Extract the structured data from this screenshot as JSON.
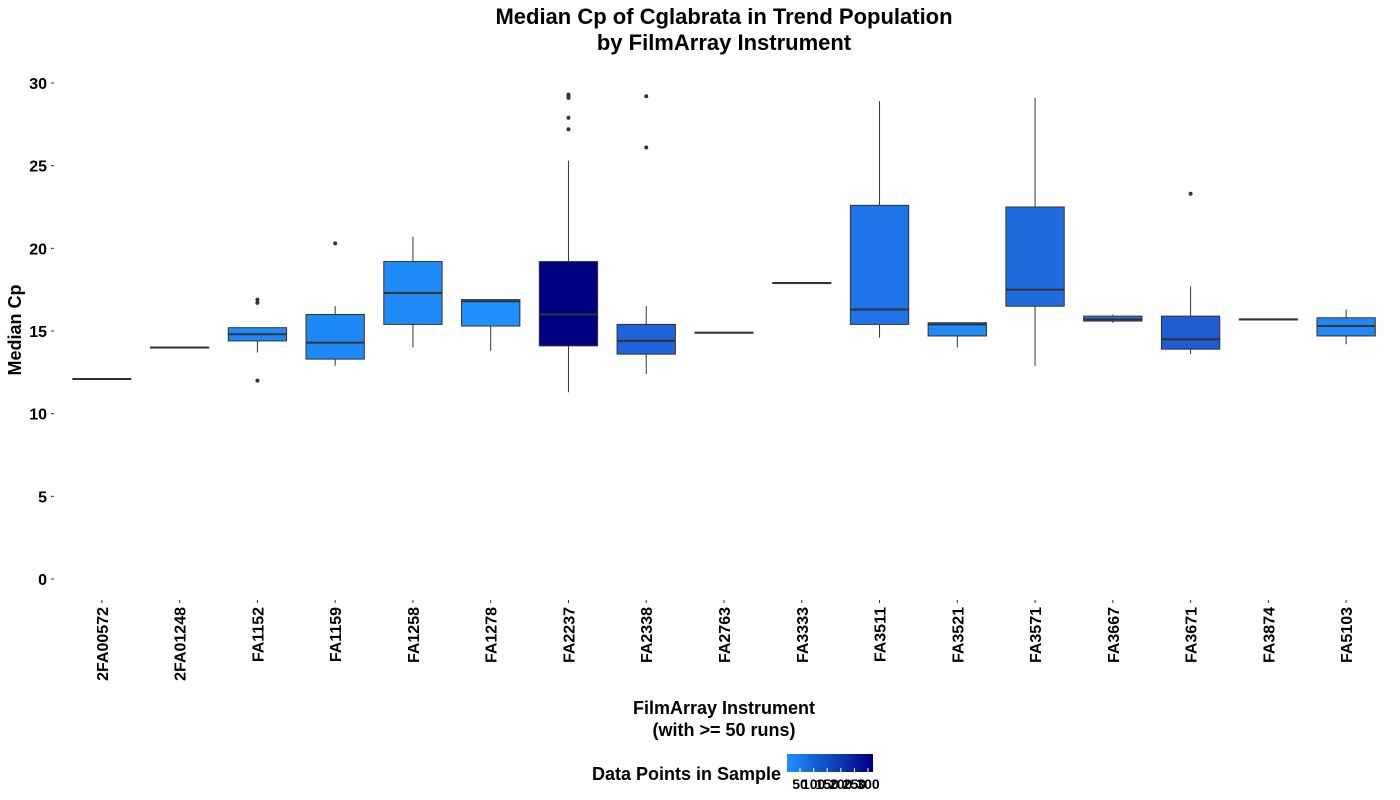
{
  "chart_data": {
    "type": "box",
    "title": [
      "Median Cp of Cglabrata in Trend Population",
      "by FilmArray Instrument"
    ],
    "xlabel": [
      "FilmArray Instrument",
      "(with >= 50 runs)"
    ],
    "ylabel": "Median Cp",
    "ylim": [
      -1,
      31
    ],
    "yticks": [
      0,
      5,
      10,
      15,
      20,
      25,
      30
    ],
    "grid": false,
    "legend": {
      "title": "Data Points in Sample",
      "position": "bottom",
      "labels": [
        "50",
        "100",
        "150",
        "200",
        "250",
        "300"
      ],
      "color_low": "#1E90FF",
      "color_high": "#000080"
    },
    "categories": [
      "2FA00572",
      "2FA01248",
      "FA1152",
      "FA1159",
      "FA1258",
      "FA1278",
      "FA2237",
      "FA2338",
      "FA2763",
      "FA3333",
      "FA3511",
      "FA3521",
      "FA3571",
      "FA3667",
      "FA3671",
      "FA3874",
      "FA5103"
    ],
    "boxes": [
      {
        "q1": 12.1,
        "median": 12.1,
        "q3": 12.1,
        "whisker_low": 12.1,
        "whisker_high": 12.1,
        "outliers": [],
        "fill": "#1E90FF"
      },
      {
        "q1": 14.0,
        "median": 14.0,
        "q3": 14.0,
        "whisker_low": 14.0,
        "whisker_high": 14.0,
        "outliers": [],
        "fill": "#1E90FF"
      },
      {
        "q1": 14.4,
        "median": 14.8,
        "q3": 15.2,
        "whisker_low": 13.7,
        "whisker_high": 15.2,
        "outliers": [
          12.0,
          16.7,
          16.9
        ],
        "fill": "#1E88F5"
      },
      {
        "q1": 13.3,
        "median": 14.3,
        "q3": 16.0,
        "whisker_low": 12.9,
        "whisker_high": 16.5,
        "outliers": [
          20.3
        ],
        "fill": "#1E88F5"
      },
      {
        "q1": 15.4,
        "median": 17.3,
        "q3": 19.2,
        "whisker_low": 14.0,
        "whisker_high": 20.7,
        "outliers": [],
        "fill": "#1E8BF8"
      },
      {
        "q1": 15.3,
        "median": 16.8,
        "q3": 16.9,
        "whisker_low": 13.8,
        "whisker_high": 16.9,
        "outliers": [],
        "fill": "#1E90FF"
      },
      {
        "q1": 14.1,
        "median": 16.0,
        "q3": 19.2,
        "whisker_low": 11.3,
        "whisker_high": 25.3,
        "outliers": [
          27.2,
          27.9,
          29.1,
          29.2,
          29.3
        ],
        "fill": "#000080"
      },
      {
        "q1": 13.6,
        "median": 14.4,
        "q3": 15.4,
        "whisker_low": 12.4,
        "whisker_high": 16.5,
        "outliers": [
          26.1,
          29.2
        ],
        "fill": "#1E64D8"
      },
      {
        "q1": 14.9,
        "median": 14.9,
        "q3": 14.9,
        "whisker_low": 14.9,
        "whisker_high": 14.9,
        "outliers": [],
        "fill": "#1E90FF"
      },
      {
        "q1": 17.9,
        "median": 17.9,
        "q3": 17.9,
        "whisker_low": 17.9,
        "whisker_high": 17.9,
        "outliers": [],
        "fill": "#1E90FF"
      },
      {
        "q1": 15.4,
        "median": 16.3,
        "q3": 22.6,
        "whisker_low": 14.6,
        "whisker_high": 28.9,
        "outliers": [],
        "fill": "#1E74E8"
      },
      {
        "q1": 14.7,
        "median": 15.4,
        "q3": 15.5,
        "whisker_low": 14.0,
        "whisker_high": 15.5,
        "outliers": [],
        "fill": "#1E8BF8"
      },
      {
        "q1": 16.5,
        "median": 17.5,
        "q3": 22.5,
        "whisker_low": 12.9,
        "whisker_high": 29.1,
        "outliers": [],
        "fill": "#1E6CE0"
      },
      {
        "q1": 15.6,
        "median": 15.7,
        "q3": 15.9,
        "whisker_low": 15.5,
        "whisker_high": 16.0,
        "outliers": [],
        "fill": "#1E78EC"
      },
      {
        "q1": 13.9,
        "median": 14.5,
        "q3": 15.9,
        "whisker_low": 13.6,
        "whisker_high": 17.7,
        "outliers": [
          23.3
        ],
        "fill": "#1E5CD4"
      },
      {
        "q1": 15.7,
        "median": 15.7,
        "q3": 15.7,
        "whisker_low": 15.7,
        "whisker_high": 15.7,
        "outliers": [],
        "fill": "#1E90FF"
      },
      {
        "q1": 14.7,
        "median": 15.3,
        "q3": 15.8,
        "whisker_low": 14.2,
        "whisker_high": 16.3,
        "outliers": [],
        "fill": "#1E88F5"
      }
    ]
  }
}
